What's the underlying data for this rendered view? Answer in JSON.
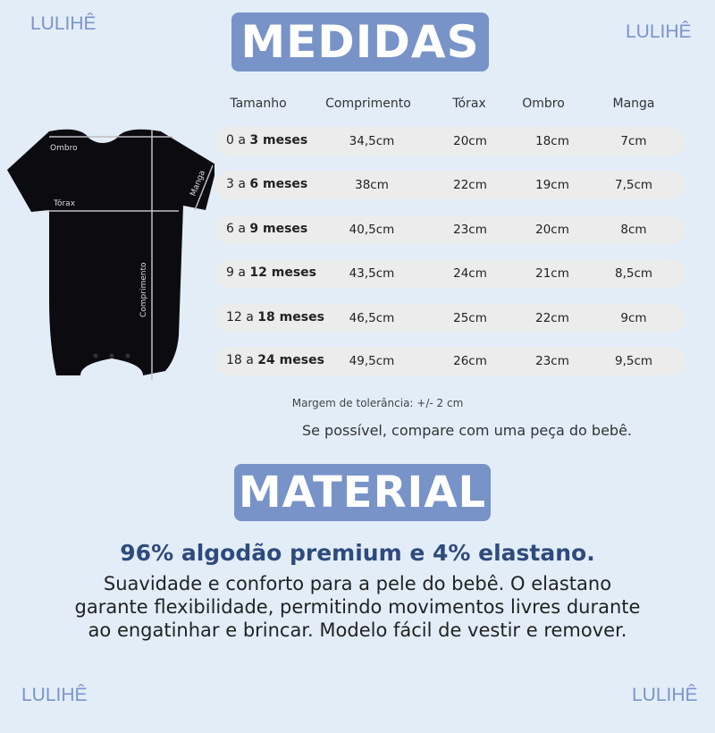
{
  "watermark": "LULIHÊ",
  "medidas_title": "MEDIDAS",
  "material_title": "MATERIAL",
  "table": {
    "headers": [
      "Tamanho",
      "Comprimento",
      "Tórax",
      "Ombro",
      "Manga"
    ],
    "rows": [
      {
        "size_prefix": "0 a ",
        "size_bold": "3 meses",
        "comprimento": "34,5cm",
        "torax": "20cm",
        "ombro": "18cm",
        "manga": "7cm"
      },
      {
        "size_prefix": "3 a ",
        "size_bold": "6 meses",
        "comprimento": "38cm",
        "torax": "22cm",
        "ombro": "19cm",
        "manga": "7,5cm"
      },
      {
        "size_prefix": "6 a ",
        "size_bold": "9 meses",
        "comprimento": "40,5cm",
        "torax": "23cm",
        "ombro": "20cm",
        "manga": "8cm"
      },
      {
        "size_prefix": "9 a ",
        "size_bold": "12 meses",
        "comprimento": "43,5cm",
        "torax": "24cm",
        "ombro": "21cm",
        "manga": "8,5cm"
      },
      {
        "size_prefix": "12 a ",
        "size_bold": "18 meses",
        "comprimento": "46,5cm",
        "torax": "25cm",
        "ombro": "22cm",
        "manga": "9cm"
      },
      {
        "size_prefix": "18 a ",
        "size_bold": "24 meses",
        "comprimento": "49,5cm",
        "torax": "26cm",
        "ombro": "23cm",
        "manga": "9,5cm"
      }
    ]
  },
  "diagram_labels": {
    "ombro": "Ombro",
    "torax": "Tórax",
    "manga": "Manga",
    "comprimento": "Comprimento"
  },
  "tolerance": "Margem de tolerância: +/- 2 cm",
  "compare": "Se possível, compare com uma peça do bebê.",
  "material_headline": "96% algodão premium e 4% elastano.",
  "material_desc": [
    "Suavidade e conforto para a pele do bebê. O elastano",
    "garante flexibilidade, permitindo movimentos livres durante",
    "ao engatinhar e brincar. Modelo fácil de vestir e remover."
  ],
  "colors": {
    "background": "#e2edf8",
    "badge": "#7893c8",
    "headline": "#2f4a7c",
    "watermark": "#7b94cc"
  }
}
